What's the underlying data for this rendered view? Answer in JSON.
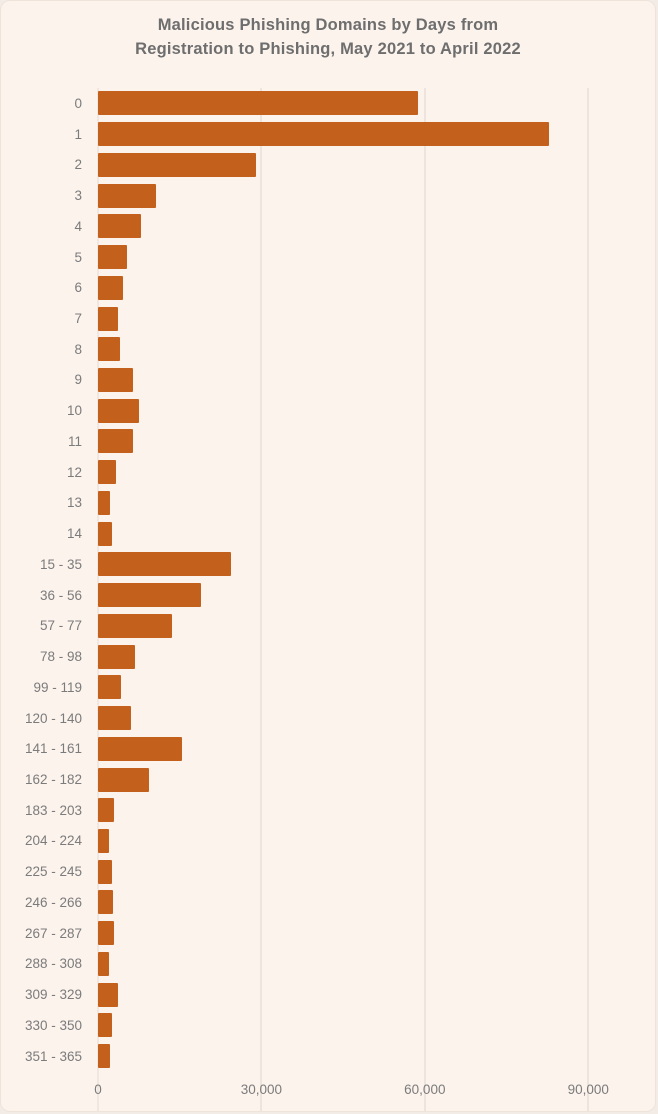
{
  "title": {
    "line1": "Malicious Phishing Domains by Days from",
    "line2": "Registration to Phishing, May 2021 to April 2022"
  },
  "colors": {
    "background": "#fcf3ed",
    "bar": "#c2601c",
    "title_text": "#6e6e6e",
    "axis_text": "#7b7b7b",
    "gridline": "#ece4dd"
  },
  "chart_data": {
    "type": "bar",
    "orientation": "horizontal",
    "title": "Malicious Phishing Domains by Days from Registration to Phishing, May 2021 to April 2022",
    "xlabel": "",
    "ylabel": "",
    "categories": [
      "0",
      "1",
      "2",
      "3",
      "4",
      "5",
      "6",
      "7",
      "8",
      "9",
      "10",
      "11",
      "12",
      "13",
      "14",
      "15 - 35",
      "36 - 56",
      "57 - 77",
      "78 - 98",
      "99 - 119",
      "120 - 140",
      "141 - 161",
      "162 - 182",
      "183 - 203",
      "204 - 224",
      "225 - 245",
      "246 - 266",
      "267 - 287",
      "288 - 308",
      "309 - 329",
      "330 - 350",
      "351 - 365"
    ],
    "values": [
      58800,
      82800,
      29000,
      10700,
      7900,
      5400,
      4500,
      3700,
      4100,
      6400,
      7500,
      6500,
      3300,
      2200,
      2600,
      24500,
      18900,
      13500,
      6800,
      4200,
      6000,
      15500,
      9400,
      2900,
      2000,
      2500,
      2800,
      2900,
      2100,
      3600,
      2500,
      2200
    ],
    "x_ticks": {
      "values": [
        0,
        30000,
        60000,
        90000
      ],
      "labels": [
        "0",
        "30,000",
        "60,000",
        "90,000"
      ]
    },
    "xlim": [
      0,
      96200
    ],
    "grid": "vertical-only",
    "legend": "none"
  }
}
